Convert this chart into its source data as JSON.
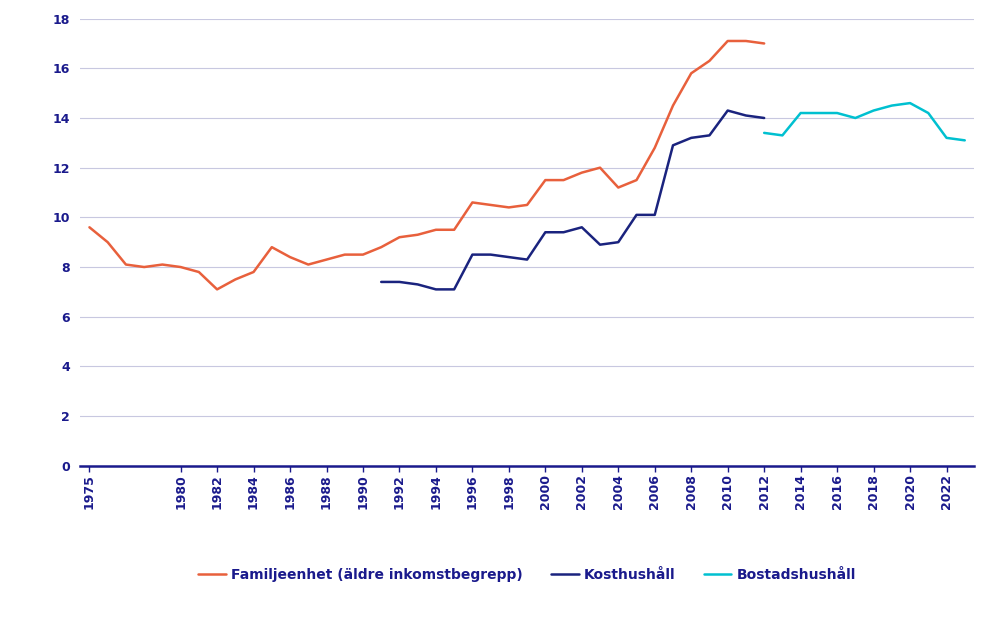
{
  "familjeenhet": {
    "years": [
      1975,
      1976,
      1977,
      1978,
      1979,
      1980,
      1981,
      1982,
      1983,
      1984,
      1985,
      1986,
      1987,
      1988,
      1989,
      1990,
      1991,
      1992,
      1993,
      1994,
      1995,
      1996,
      1997,
      1998,
      1999,
      2000,
      2001,
      2002,
      2003,
      2004,
      2005,
      2006,
      2007,
      2008,
      2009,
      2010,
      2011,
      2012
    ],
    "values": [
      9.6,
      9.0,
      8.1,
      8.0,
      8.1,
      8.0,
      7.8,
      7.1,
      7.5,
      7.8,
      8.8,
      8.4,
      8.1,
      8.3,
      8.5,
      8.5,
      8.8,
      9.2,
      9.3,
      9.5,
      9.5,
      10.6,
      10.5,
      10.4,
      10.5,
      11.5,
      11.5,
      11.8,
      12.0,
      11.2,
      11.5,
      12.8,
      14.5,
      15.8,
      16.3,
      17.1,
      17.1,
      17.0
    ],
    "color": "#E8603C",
    "label": "Familjeenhet (äldre inkomstbegrepp)"
  },
  "kosthushall": {
    "years": [
      1991,
      1992,
      1993,
      1994,
      1995,
      1996,
      1997,
      1998,
      1999,
      2000,
      2001,
      2002,
      2003,
      2004,
      2005,
      2006,
      2007,
      2008,
      2009,
      2010,
      2011,
      2012
    ],
    "values": [
      7.4,
      7.4,
      7.3,
      7.1,
      7.1,
      8.5,
      8.5,
      8.4,
      8.3,
      9.4,
      9.4,
      9.6,
      8.9,
      9.0,
      10.1,
      10.1,
      12.9,
      13.2,
      13.3,
      14.3,
      14.1,
      14.0
    ],
    "color": "#1A237E",
    "label": "Kosthushåll"
  },
  "bostadshushall": {
    "years": [
      2012,
      2013,
      2014,
      2015,
      2016,
      2017,
      2018,
      2019,
      2020,
      2021,
      2022,
      2023
    ],
    "values": [
      13.4,
      13.3,
      14.2,
      14.2,
      14.2,
      14.0,
      14.3,
      14.5,
      14.6,
      14.2,
      13.2,
      13.1
    ],
    "color": "#00C0D0",
    "label": "Bostadshushåll"
  },
  "xlim": [
    1974.5,
    2023.5
  ],
  "ylim": [
    0,
    18
  ],
  "yticks": [
    0,
    2,
    4,
    6,
    8,
    10,
    12,
    14,
    16,
    18
  ],
  "xticks": [
    1975,
    1980,
    1982,
    1984,
    1986,
    1988,
    1990,
    1992,
    1994,
    1996,
    1998,
    2000,
    2002,
    2004,
    2006,
    2008,
    2010,
    2012,
    2014,
    2016,
    2018,
    2020,
    2022
  ],
  "grid_color": "#C8C8E0",
  "axis_color": "#1A1A8C",
  "background_color": "#FFFFFF",
  "line_width": 1.8,
  "legend_fontsize": 10,
  "tick_fontsize": 9,
  "tick_color": "#1A1A8C"
}
